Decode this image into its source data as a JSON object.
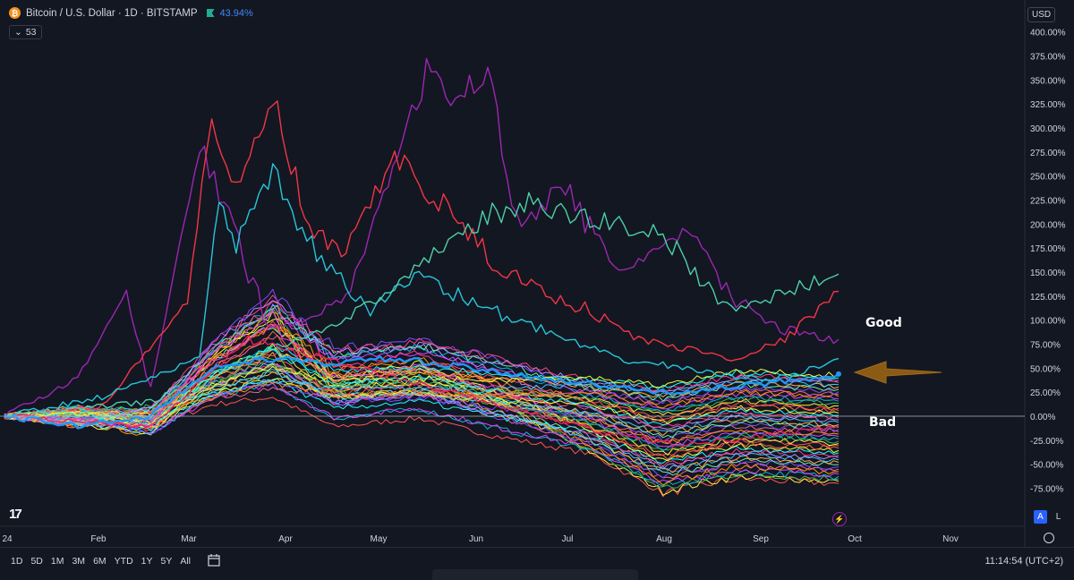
{
  "header": {
    "symbol_title": "Bitcoin / U.S. Dollar · 1D · BITSTAMP",
    "change_pct": "43.94%",
    "overlay_count": "53"
  },
  "currency": "USD",
  "annotations": {
    "good": "Good",
    "bad": "Bad"
  },
  "timeframes": [
    "1D",
    "5D",
    "1M",
    "3M",
    "6M",
    "YTD",
    "1Y",
    "5Y",
    "All"
  ],
  "clock": "11:14:54 (UTC+2)",
  "toggles": {
    "a": "A",
    "l": "L"
  },
  "colors": {
    "background": "#131722",
    "zero_line": "#b2b5be",
    "arrow": "#8b5a14",
    "btc_line": "#2196f3"
  },
  "chart_data": {
    "type": "line",
    "x_ticks": [
      "24",
      "Feb",
      "Mar",
      "Apr",
      "May",
      "Jun",
      "Jul",
      "Aug",
      "Sep",
      "Oct",
      "Nov"
    ],
    "y_ticks": [
      "400.00%",
      "375.00%",
      "350.00%",
      "325.00%",
      "300.00%",
      "275.00%",
      "250.00%",
      "225.00%",
      "200.00%",
      "175.00%",
      "150.00%",
      "125.00%",
      "100.00%",
      "75.00%",
      "50.00%",
      "25.00%",
      "0.00%",
      "-25.00%",
      "-50.00%",
      "-75.00%"
    ],
    "y_axis_values": [
      400,
      375,
      350,
      325,
      300,
      275,
      250,
      225,
      200,
      175,
      150,
      125,
      100,
      75,
      50,
      25,
      0,
      -25,
      -50,
      -75
    ],
    "ylim": [
      -85,
      408
    ],
    "x_range_days": [
      0,
      318
    ],
    "series_count": 53,
    "highlight_series": {
      "name": "Bitcoin / U.S. Dollar",
      "last_value_pct": 43.94
    },
    "notable_series": [
      {
        "color": "#9c27b0",
        "points": [
          [
            0,
            0
          ],
          [
            30,
            40
          ],
          [
            50,
            130
          ],
          [
            60,
            30
          ],
          [
            80,
            280
          ],
          [
            110,
            90
          ],
          [
            140,
            120
          ],
          [
            165,
            300
          ],
          [
            175,
            370
          ],
          [
            185,
            330
          ],
          [
            200,
            350
          ],
          [
            210,
            200
          ],
          [
            230,
            240
          ],
          [
            250,
            150
          ],
          [
            280,
            190
          ],
          [
            300,
            120
          ],
          [
            320,
            90
          ],
          [
            342,
            80
          ]
        ]
      },
      {
        "color": "#f23645",
        "points": [
          [
            0,
            0
          ],
          [
            40,
            10
          ],
          [
            75,
            120
          ],
          [
            85,
            320
          ],
          [
            95,
            230
          ],
          [
            110,
            330
          ],
          [
            125,
            190
          ],
          [
            140,
            170
          ],
          [
            160,
            270
          ],
          [
            180,
            220
          ],
          [
            200,
            160
          ],
          [
            220,
            130
          ],
          [
            240,
            110
          ],
          [
            260,
            80
          ],
          [
            280,
            70
          ],
          [
            300,
            60
          ],
          [
            320,
            80
          ],
          [
            342,
            130
          ]
        ]
      },
      {
        "color": "#26c6da",
        "points": [
          [
            0,
            0
          ],
          [
            40,
            20
          ],
          [
            80,
            60
          ],
          [
            88,
            230
          ],
          [
            95,
            180
          ],
          [
            110,
            250
          ],
          [
            130,
            160
          ],
          [
            150,
            110
          ],
          [
            170,
            150
          ],
          [
            190,
            120
          ],
          [
            210,
            100
          ],
          [
            230,
            80
          ],
          [
            250,
            60
          ],
          [
            280,
            50
          ],
          [
            300,
            40
          ],
          [
            320,
            40
          ],
          [
            342,
            60
          ]
        ]
      },
      {
        "color": "#4dd0a8",
        "points": [
          [
            0,
            0
          ],
          [
            60,
            15
          ],
          [
            100,
            60
          ],
          [
            130,
            90
          ],
          [
            160,
            130
          ],
          [
            180,
            180
          ],
          [
            200,
            210
          ],
          [
            215,
            220
          ],
          [
            230,
            210
          ],
          [
            250,
            200
          ],
          [
            270,
            190
          ],
          [
            285,
            140
          ],
          [
            300,
            110
          ],
          [
            320,
            130
          ],
          [
            342,
            148
          ]
        ]
      },
      {
        "color": "#e91e63",
        "points": [
          [
            0,
            0
          ],
          [
            60,
            -10
          ],
          [
            100,
            80
          ],
          [
            130,
            60
          ],
          [
            160,
            40
          ],
          [
            190,
            20
          ],
          [
            220,
            0
          ],
          [
            250,
            -20
          ],
          [
            280,
            -30
          ],
          [
            310,
            -20
          ],
          [
            342,
            -10
          ]
        ]
      }
    ],
    "visible_value_range_pct": [
      -75,
      375
    ],
    "annotation_arrow_value_pct": 44
  }
}
